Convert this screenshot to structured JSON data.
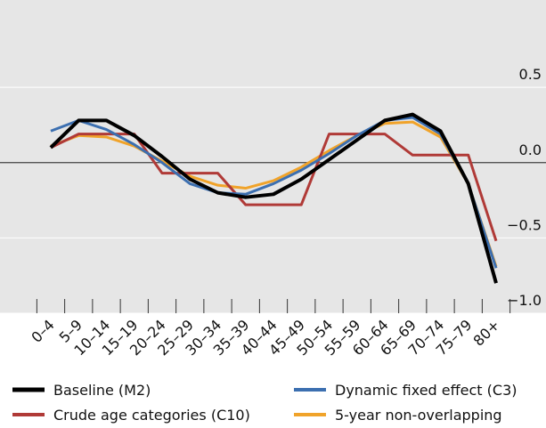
{
  "chart_data": {
    "type": "line",
    "categories": [
      "0–4",
      "5–9",
      "10–14",
      "15–19",
      "20–24",
      "25–29",
      "30–34",
      "35–39",
      "40–44",
      "45–49",
      "50–54",
      "55–59",
      "60–64",
      "65–69",
      "70–74",
      "75–79",
      "80+"
    ],
    "series": [
      {
        "name": "Baseline (M2)",
        "color": "#000000",
        "values": [
          0.1,
          0.28,
          0.28,
          0.18,
          0.04,
          -0.11,
          -0.2,
          -0.23,
          -0.21,
          -0.11,
          0.02,
          0.15,
          0.28,
          0.32,
          0.21,
          -0.14,
          -0.8
        ]
      },
      {
        "name": "Dynamic fixed effect (C3)",
        "color": "#3c6fb0",
        "values": [
          0.21,
          0.28,
          0.22,
          0.12,
          0.0,
          -0.14,
          -0.2,
          -0.21,
          -0.14,
          -0.05,
          0.06,
          0.18,
          0.28,
          0.3,
          0.19,
          -0.14,
          -0.7
        ]
      },
      {
        "name": "Crude age categories (C10)",
        "color": "#b03a37",
        "values": [
          0.1,
          0.19,
          0.19,
          0.19,
          -0.07,
          -0.07,
          -0.07,
          -0.28,
          -0.28,
          -0.28,
          0.19,
          0.19,
          0.19,
          0.05,
          0.05,
          0.05,
          -0.52
        ]
      },
      {
        "name": "5-year non-overlapping",
        "color": "#f0a32a",
        "values": [
          0.11,
          0.18,
          0.17,
          0.11,
          0.01,
          -0.09,
          -0.15,
          -0.17,
          -0.12,
          -0.03,
          0.08,
          0.18,
          0.26,
          0.27,
          0.17,
          -0.14,
          -0.69
        ]
      }
    ],
    "ylim": [
      -1.0,
      1.08
    ],
    "yticks": [
      0.5,
      {
        "value": 0,
        "label": "0.0"
      },
      {
        "value": -0.5,
        "label": "−0.5"
      },
      {
        "value": -1.0,
        "label": "−1.0"
      }
    ],
    "grid": true
  }
}
